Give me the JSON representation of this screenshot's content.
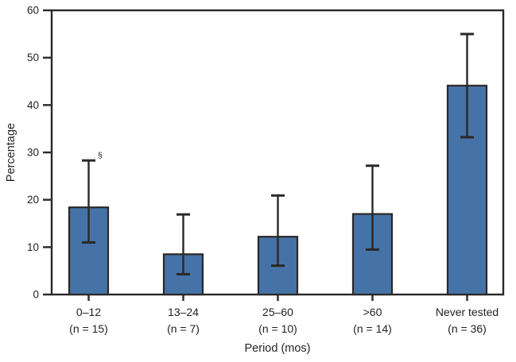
{
  "figure": {
    "background": "#ffffff"
  },
  "chart_data": {
    "type": "bar",
    "title": "",
    "xlabel": "Period (mos)",
    "ylabel": "Percentage",
    "ylim": [
      0,
      60
    ],
    "yticks": [
      0,
      10,
      20,
      30,
      40,
      50,
      60
    ],
    "grid": false,
    "frame": "box",
    "legend": "none",
    "bar_color": "#4573a7",
    "bar_edge_color": "#2b2826",
    "error_bar_color": "#2b2826",
    "axis_color": "#2b2826",
    "text_color": "#231f20",
    "categories": [
      "0–12",
      "13–24",
      "25–60",
      ">60",
      "Never tested"
    ],
    "sublabels": [
      "(n = 15)",
      "(n = 7)",
      "(n = 10)",
      "(n = 14)",
      "(n = 36)"
    ],
    "values": [
      18.4,
      8.5,
      12.2,
      17.0,
      44.1
    ],
    "error_low": [
      11.0,
      4.3,
      6.1,
      9.5,
      33.2
    ],
    "error_high": [
      28.3,
      16.9,
      20.9,
      27.2,
      55.0
    ],
    "annotations": [
      {
        "text": "§",
        "category_index": 0,
        "attach": "error_high"
      }
    ]
  }
}
